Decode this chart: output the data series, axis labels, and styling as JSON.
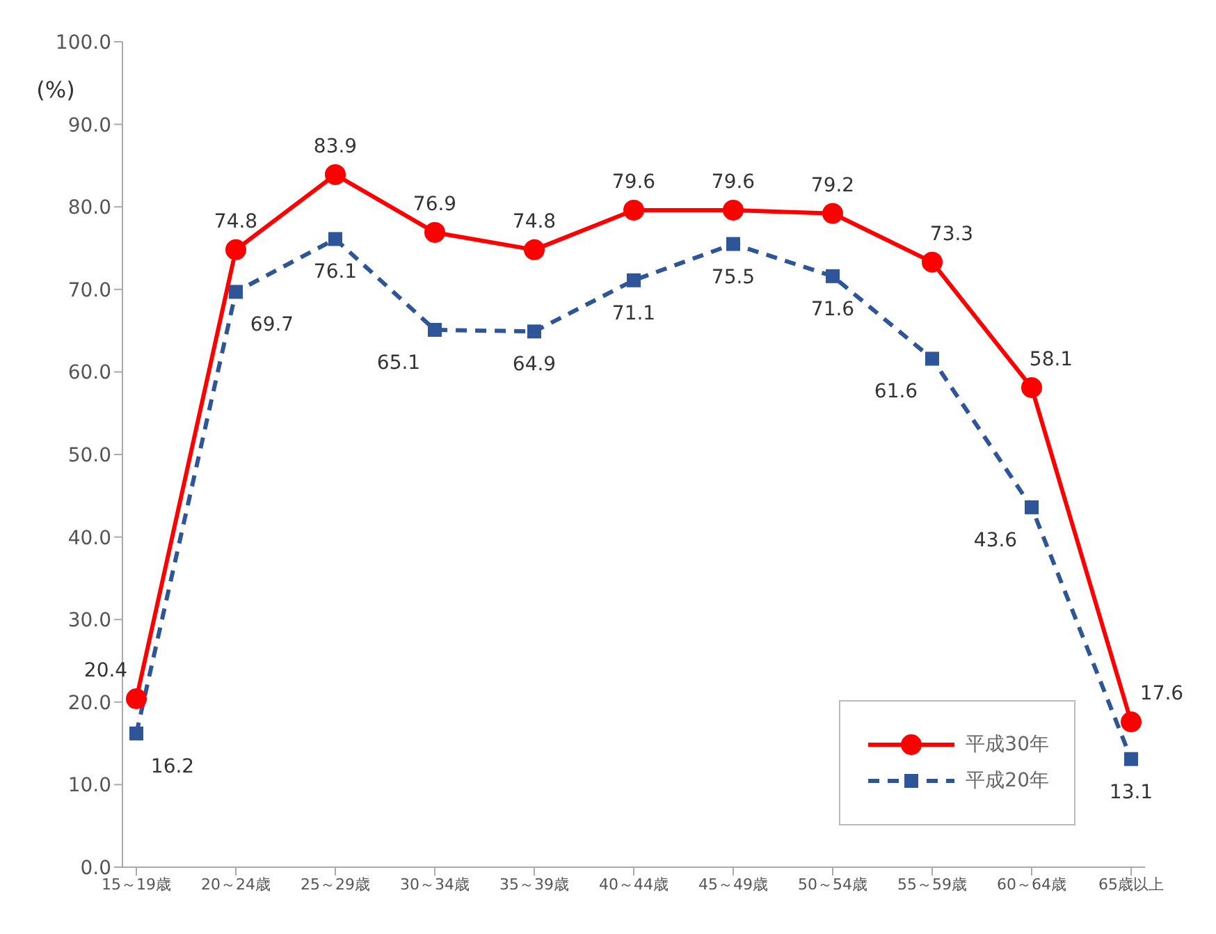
{
  "chart_data": {
    "type": "line",
    "ylabel": "(%)",
    "categories": [
      "15～19歳",
      "20～24歳",
      "25～29歳",
      "30～34歳",
      "35～39歳",
      "40～44歳",
      "45～49歳",
      "50～54歳",
      "55～59歳",
      "60～64歳",
      "65歳以上"
    ],
    "series": [
      {
        "name": "平成30年",
        "color": "#ff0000",
        "marker": "circle",
        "line_style": "solid",
        "values": [
          20.4,
          74.8,
          83.9,
          76.9,
          74.8,
          79.6,
          79.6,
          79.2,
          73.3,
          58.1,
          17.6
        ]
      },
      {
        "name": "平成20年",
        "color": "#2e5597",
        "marker": "square",
        "line_style": "dashed",
        "values": [
          16.2,
          69.7,
          76.1,
          65.1,
          64.9,
          71.1,
          75.5,
          71.6,
          61.6,
          43.6,
          13.1
        ]
      }
    ],
    "ylim": [
      0,
      100
    ],
    "yticks": [
      {
        "value": 0,
        "label": "0.0"
      },
      {
        "value": 10,
        "label": "10.0"
      },
      {
        "value": 20,
        "label": "20.0"
      },
      {
        "value": 30,
        "label": "30.0"
      },
      {
        "value": 40,
        "label": "40.0"
      },
      {
        "value": 50,
        "label": "50.0"
      },
      {
        "value": 60,
        "label": "60.0"
      },
      {
        "value": 70,
        "label": "70.0"
      },
      {
        "value": 80,
        "label": "80.0"
      },
      {
        "value": 90,
        "label": "90.0"
      },
      {
        "value": 100,
        "label": "100.0"
      }
    ],
    "data_labels": true,
    "grid": false,
    "legend": "bottom right"
  }
}
